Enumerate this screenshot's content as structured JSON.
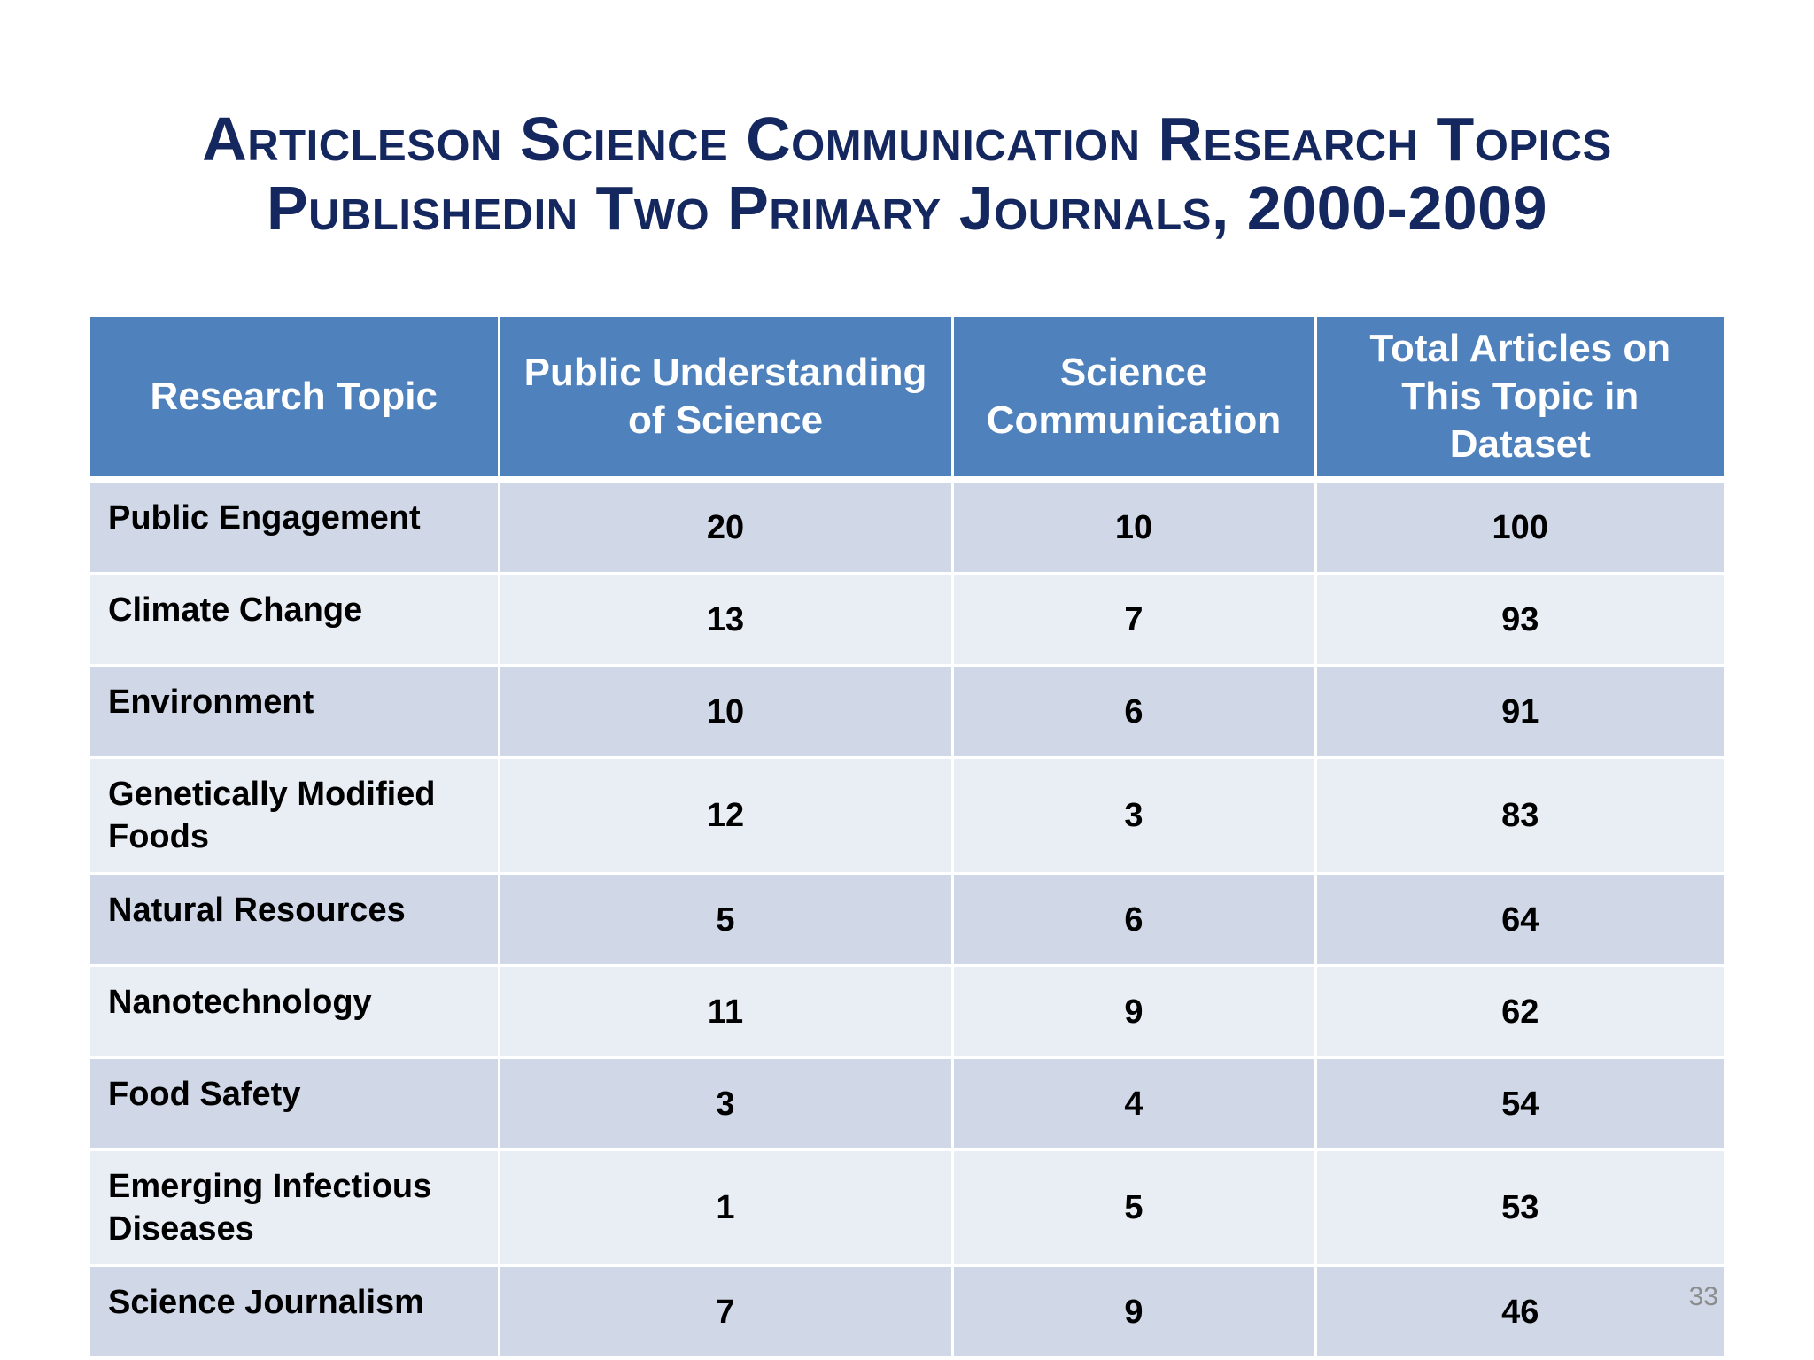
{
  "slide": {
    "title_line1": "Articleson Science Communication Research Topics",
    "title_line2": "Publishedin Two Primary Journals, 2000-2009",
    "page_number": "33"
  },
  "table": {
    "headers": [
      "Research Topic",
      "Public Understanding of Science",
      "Science Communication",
      "Total Articles on This Topic in Dataset"
    ],
    "rows": [
      [
        "Public Engagement",
        "20",
        "10",
        "100"
      ],
      [
        "Climate Change",
        "13",
        "7",
        "93"
      ],
      [
        "Environment",
        "10",
        "6",
        "91"
      ],
      [
        "Genetically Modified Foods",
        "12",
        "3",
        "83"
      ],
      [
        "Natural Resources",
        "5",
        "6",
        "64"
      ],
      [
        "Nanotechnology",
        "11",
        "9",
        "62"
      ],
      [
        "Food Safety",
        "3",
        "4",
        "54"
      ],
      [
        "Emerging Infectious Diseases",
        "1",
        "5",
        "53"
      ],
      [
        "Science Journalism",
        "7",
        "9",
        "46"
      ]
    ]
  },
  "colors": {
    "title": "#14285f",
    "header_fill": "#4f81bd",
    "row_odd": "#d0d8e8",
    "row_even": "#e9edf4"
  }
}
